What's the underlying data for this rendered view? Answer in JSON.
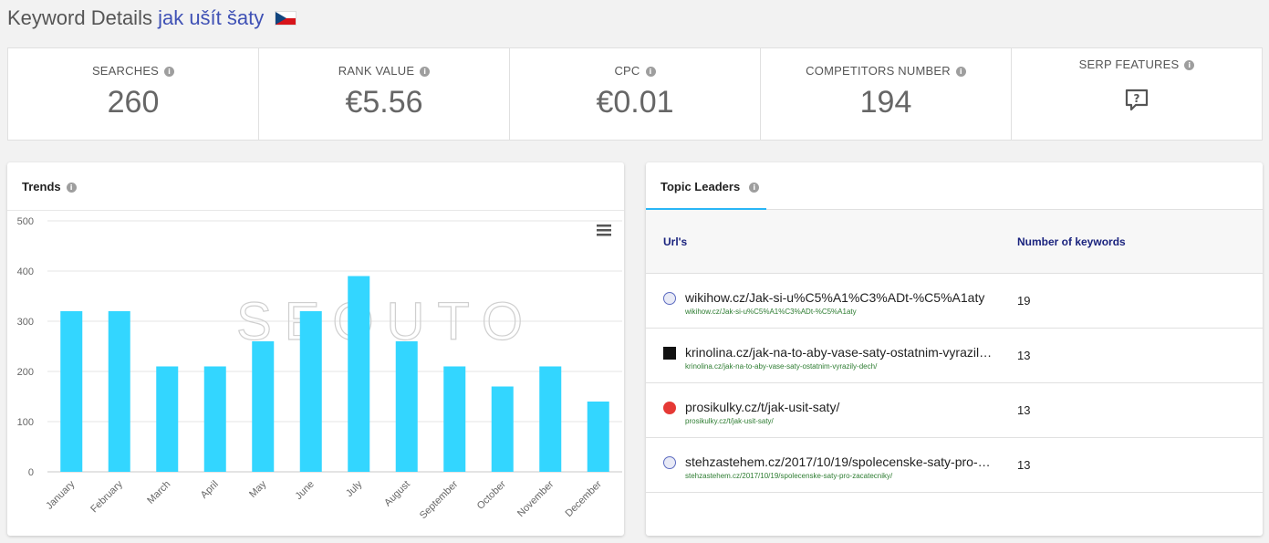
{
  "header": {
    "title_prefix": "Keyword Details",
    "keyword": "jak ušít šaty",
    "flag_icon": "czech-flag-icon"
  },
  "stats": [
    {
      "label": "SEARCHES",
      "value": "260"
    },
    {
      "label": "RANK VALUE",
      "value": "€5.56"
    },
    {
      "label": "CPC",
      "value": "€0.01"
    },
    {
      "label": "COMPETITORS NUMBER",
      "value": "194"
    },
    {
      "label": "SERP FEATURES",
      "icon": "question-bubble-icon"
    }
  ],
  "trends": {
    "title": "Trends",
    "menu_icon": "hamburger-menu-icon",
    "watermark": "SEOUTO"
  },
  "chart_data": {
    "type": "bar",
    "categories": [
      "January",
      "February",
      "March",
      "April",
      "May",
      "June",
      "July",
      "August",
      "September",
      "October",
      "November",
      "December"
    ],
    "values": [
      320,
      320,
      210,
      210,
      260,
      320,
      390,
      260,
      210,
      170,
      210,
      140
    ],
    "title": "",
    "xlabel": "",
    "ylabel": "",
    "ylim": [
      0,
      500
    ],
    "yticks": [
      0,
      100,
      200,
      300,
      400,
      500
    ],
    "grid": true,
    "color": "#33d6ff"
  },
  "topic_leaders": {
    "tab_label": "Topic Leaders",
    "columns": [
      "Url's",
      "Number of keywords"
    ],
    "rows": [
      {
        "favicon": "globe-icon",
        "url": "wikihow.cz/Jak-si-u%C5%A1%C3%ADt-%C5%A1aty",
        "sub": "wikihow.cz/Jak-si-u%C5%A1%C3%ADt-%C5%A1aty",
        "count": "19"
      },
      {
        "favicon": "site-logo-icon",
        "url": "krinolina.cz/jak-na-to-aby-vase-saty-ostatnim-vyrazily-dech/",
        "sub": "krinolina.cz/jak-na-to-aby-vase-saty-ostatnim-vyrazily-dech/",
        "count": "13"
      },
      {
        "favicon": "pin-icon",
        "url": "prosikulky.cz/t/jak-usit-saty/",
        "sub": "prosikulky.cz/t/jak-usit-saty/",
        "count": "13"
      },
      {
        "favicon": "globe-icon",
        "url": "stehzastehem.cz/2017/10/19/spolecenske-saty-pro-zacatecniky/",
        "sub": "stehzastehem.cz/2017/10/19/spolecenske-saty-pro-zacatecniky/",
        "count": "13"
      }
    ]
  },
  "colors": {
    "accent": "#3f51b5",
    "bar": "#33d6ff",
    "tab_underline": "#29b6f6",
    "link_green": "#2e7d32"
  }
}
